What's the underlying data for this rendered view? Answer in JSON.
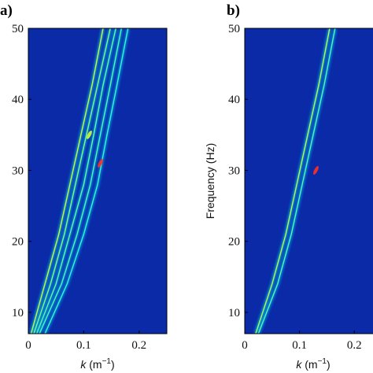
{
  "chart_data": [
    {
      "type": "heatmap",
      "panel_label": "a)",
      "xlabel_var": "k",
      "xlabel_unit": " (m",
      "xlabel_exp": "−1",
      "xlabel_close": ")",
      "ylabel": "",
      "xlim": [
        0,
        0.25
      ],
      "ylim": [
        7,
        50
      ],
      "x_ticks": [
        0,
        0.1,
        0.2
      ],
      "x_tick_labels": [
        "0",
        "0.1",
        "0.2"
      ],
      "y_ticks": [
        10,
        20,
        30,
        40,
        50
      ],
      "y_tick_labels": [
        "10",
        "20",
        "30",
        "40",
        "50"
      ],
      "colormap": "jet",
      "background_color": "#0a2aa8",
      "dispersion_curves": [
        {
          "name": "",
          "points": [
            [
              0.005,
              7
            ],
            [
              0.03,
              14
            ],
            [
              0.055,
              21
            ],
            [
              0.075,
              28
            ],
            [
              0.095,
              35
            ],
            [
              0.115,
              42
            ],
            [
              0.135,
              50
            ]
          ],
          "peak_intensity": 0.65
        },
        {
          "name": "",
          "points": [
            [
              0.01,
              7
            ],
            [
              0.04,
              14
            ],
            [
              0.065,
              21
            ],
            [
              0.085,
              28
            ],
            [
              0.105,
              35
            ],
            [
              0.125,
              42
            ],
            [
              0.148,
              50
            ]
          ],
          "peak_intensity": 0.45
        },
        {
          "name": "",
          "points": [
            [
              0.015,
              7
            ],
            [
              0.05,
              14
            ],
            [
              0.075,
              21
            ],
            [
              0.1,
              28
            ],
            [
              0.118,
              35
            ],
            [
              0.135,
              42
            ],
            [
              0.158,
              50
            ]
          ],
          "peak_intensity": 0.35
        },
        {
          "name": "",
          "points": [
            [
              0.02,
              7
            ],
            [
              0.06,
              14
            ],
            [
              0.088,
              21
            ],
            [
              0.112,
              28
            ],
            [
              0.13,
              35
            ],
            [
              0.148,
              42
            ],
            [
              0.168,
              50
            ]
          ],
          "peak_intensity": 0.3
        },
        {
          "name": "",
          "points": [
            [
              0.03,
              7
            ],
            [
              0.07,
              14
            ],
            [
              0.1,
              21
            ],
            [
              0.125,
              28
            ],
            [
              0.142,
              35
            ],
            [
              0.16,
              42
            ],
            [
              0.18,
              50
            ]
          ],
          "peak_intensity": 0.22
        }
      ],
      "hotspots": [
        {
          "k": 0.11,
          "f": 35,
          "color": "#c8ff40"
        },
        {
          "k": 0.13,
          "f": 31,
          "color": "#ff3020"
        }
      ]
    },
    {
      "type": "heatmap",
      "panel_label": "b)",
      "xlabel_var": "k",
      "xlabel_unit": " (m",
      "xlabel_exp": "−1",
      "xlabel_close": ")",
      "ylabel": "Frequency (Hz)",
      "xlim": [
        0,
        0.25
      ],
      "ylim": [
        7,
        50
      ],
      "x_ticks": [
        0,
        0.1,
        0.2
      ],
      "x_tick_labels": [
        "0",
        "0.1",
        "0.2"
      ],
      "y_ticks": [
        10,
        20,
        30,
        40,
        50
      ],
      "y_tick_labels": [
        "10",
        "20",
        "30",
        "40",
        "50"
      ],
      "colormap": "jet",
      "background_color": "#0a2aa8",
      "dispersion_curves": [
        {
          "name": "",
          "points": [
            [
              0.02,
              7
            ],
            [
              0.05,
              14
            ],
            [
              0.075,
              21
            ],
            [
              0.095,
              28
            ],
            [
              0.115,
              35
            ],
            [
              0.135,
              42
            ],
            [
              0.155,
              50
            ]
          ],
          "peak_intensity": 0.6
        },
        {
          "name": "",
          "points": [
            [
              0.025,
              7
            ],
            [
              0.06,
              14
            ],
            [
              0.085,
              21
            ],
            [
              0.105,
              28
            ],
            [
              0.125,
              35
            ],
            [
              0.145,
              42
            ],
            [
              0.165,
              50
            ]
          ],
          "peak_intensity": 0.3
        }
      ],
      "hotspots": [
        {
          "k": 0.13,
          "f": 30,
          "color": "#ff3020"
        }
      ]
    }
  ]
}
